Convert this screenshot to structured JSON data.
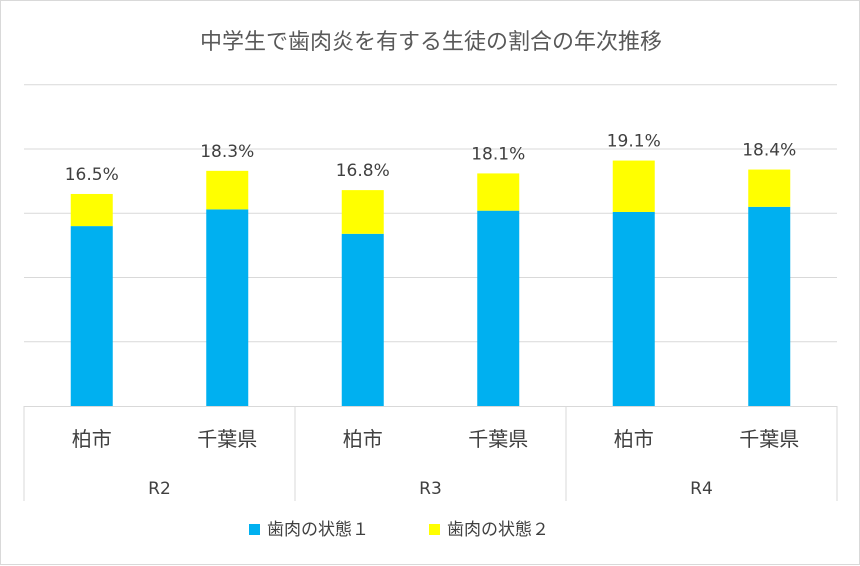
{
  "chart_data": {
    "type": "bar",
    "stacked": true,
    "title": "中学生で歯肉炎を有する生徒の割合の年次推移",
    "groups": [
      "R2",
      "R3",
      "R4"
    ],
    "categories": [
      "柏市",
      "千葉県",
      "柏市",
      "千葉県",
      "柏市",
      "千葉県"
    ],
    "series": [
      {
        "name": "歯肉の状態１",
        "color": "#00B0F0",
        "values": [
          14.0,
          15.3,
          13.4,
          15.2,
          15.1,
          15.5
        ]
      },
      {
        "name": "歯肉の状態２",
        "color": "#FFFF00",
        "values": [
          2.5,
          3.0,
          3.4,
          2.9,
          4.0,
          2.9
        ]
      }
    ],
    "total_labels": [
      "16.5%",
      "18.3%",
      "16.8%",
      "18.1%",
      "19.1%",
      "18.4%"
    ],
    "ylim": [
      0,
      25
    ],
    "grid": true,
    "legend": "bottom"
  }
}
